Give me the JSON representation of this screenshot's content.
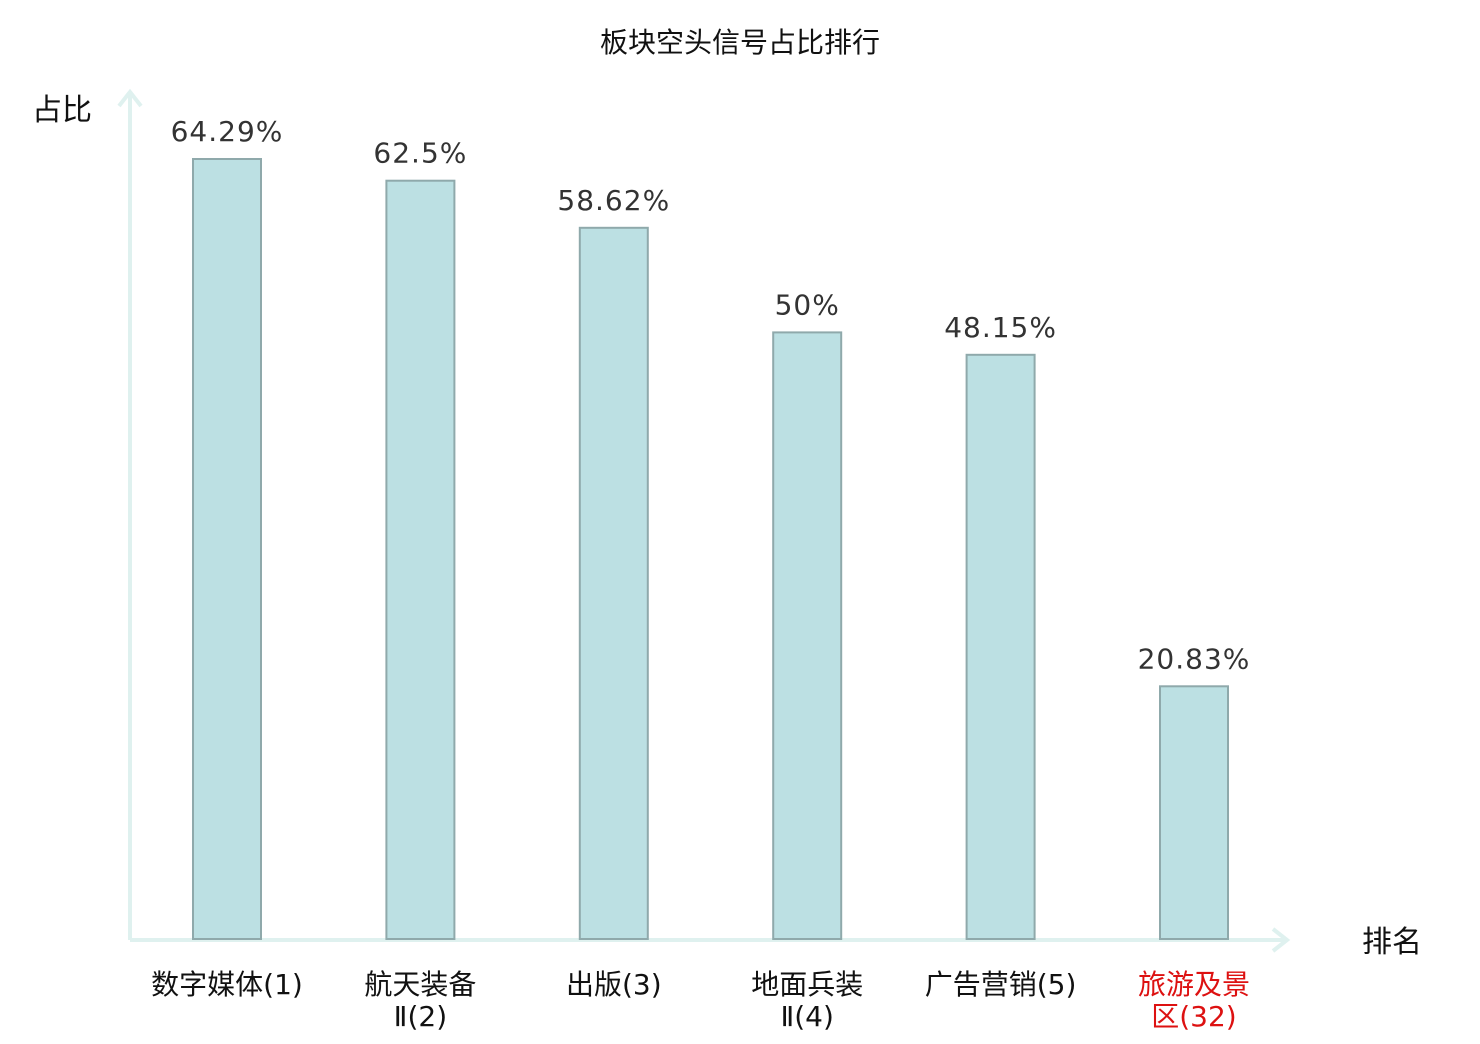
{
  "chart_data": {
    "type": "bar",
    "title": "板块空头信号占比排行",
    "ylabel": "占比",
    "xlabel": "排名",
    "grid": false,
    "legend": "none",
    "ylim": [
      0,
      70
    ],
    "categories": [
      {
        "lines": [
          "数字媒体(1)"
        ],
        "highlight": false
      },
      {
        "lines": [
          "航天装备",
          "Ⅱ(2)"
        ],
        "highlight": false
      },
      {
        "lines": [
          "出版(3)"
        ],
        "highlight": false
      },
      {
        "lines": [
          "地面兵装",
          "Ⅱ(4)"
        ],
        "highlight": false
      },
      {
        "lines": [
          "广告营销(5)"
        ],
        "highlight": false
      },
      {
        "lines": [
          "旅游及景",
          "区(32)"
        ],
        "highlight": true
      }
    ],
    "values": [
      64.29,
      62.5,
      58.62,
      50,
      48.15,
      20.83
    ],
    "value_labels": [
      "64.29%",
      "62.5%",
      "58.62%",
      "50%",
      "48.15%",
      "20.83%"
    ],
    "colors": {
      "bar_fill": "#bce0e3",
      "bar_stroke": "#8fa9ab",
      "axis": "#dff1ef",
      "label_normal": "#111111",
      "label_highlight": "#dd1111",
      "value_text": "#333333"
    }
  }
}
